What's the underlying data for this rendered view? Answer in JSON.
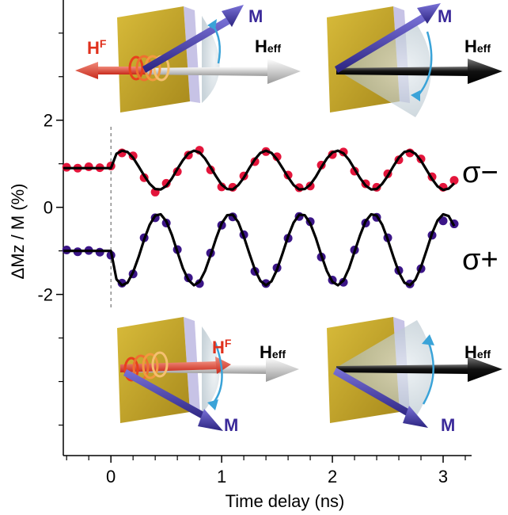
{
  "chart_data": {
    "type": "scatter",
    "xlabel": "Time delay (ns)",
    "ylabel": "ΔMz / M (%)",
    "xlim": [
      -0.43,
      3.25
    ],
    "ylim": [
      -5.7,
      4.76
    ],
    "xticks": [
      0,
      1,
      2,
      3
    ],
    "yticks": [
      -2,
      0,
      2
    ],
    "xminorticks": [
      -0.4,
      -0.2,
      0.2,
      0.4,
      0.6,
      0.8,
      1.2,
      1.4,
      1.6,
      1.8,
      2.2,
      2.4,
      2.6,
      2.8,
      3.2
    ],
    "yminorticks": [
      -5,
      -4,
      -3,
      -1,
      1,
      3,
      4
    ],
    "vline": 0,
    "series": [
      {
        "name": "σ−",
        "color": "#e3153b",
        "mode": "points",
        "x": [
          -0.4,
          -0.3,
          -0.2,
          -0.1,
          0,
          0.1,
          0.2,
          0.3,
          0.4,
          0.5,
          0.6,
          0.7,
          0.8,
          0.9,
          1,
          1.1,
          1.2,
          1.3,
          1.4,
          1.5,
          1.6,
          1.7,
          1.8,
          1.9,
          2,
          2.1,
          2.2,
          2.3,
          2.4,
          2.5,
          2.6,
          2.7,
          2.8,
          2.9,
          3,
          3.1
        ],
        "values": [
          0.92,
          0.9,
          0.93,
          0.91,
          0.95,
          1.25,
          1.18,
          0.68,
          0.35,
          0.55,
          0.82,
          1.2,
          1.31,
          0.86,
          0.47,
          0.46,
          0.72,
          1.05,
          1.28,
          1.16,
          0.74,
          0.45,
          0.49,
          0.97,
          1.21,
          1.27,
          0.83,
          0.54,
          0.46,
          0.77,
          1.09,
          1.25,
          1.11,
          0.7,
          0.46,
          0.62
        ]
      },
      {
        "name": "σ+",
        "color": "#3b1587",
        "mode": "points",
        "x": [
          -0.4,
          -0.3,
          -0.2,
          -0.1,
          0,
          0.1,
          0.2,
          0.3,
          0.4,
          0.5,
          0.6,
          0.7,
          0.8,
          0.9,
          1,
          1.1,
          1.2,
          1.3,
          1.4,
          1.5,
          1.6,
          1.7,
          1.8,
          1.9,
          2,
          2.1,
          2.2,
          2.3,
          2.4,
          2.5,
          2.6,
          2.7,
          2.8,
          2.9,
          3,
          3.1
        ],
        "values": [
          -0.98,
          -1.02,
          -0.99,
          -1.03,
          -1.1,
          -1.74,
          -1.53,
          -0.7,
          -0.24,
          -0.36,
          -0.97,
          -1.62,
          -1.75,
          -1.05,
          -0.41,
          -0.22,
          -0.63,
          -1.47,
          -1.75,
          -1.39,
          -0.71,
          -0.21,
          -0.33,
          -1.14,
          -1.67,
          -1.72,
          -0.98,
          -0.36,
          -0.23,
          -0.7,
          -1.45,
          -1.76,
          -1.41,
          -0.64,
          -0.31,
          -0.38
        ]
      },
      {
        "color": "#000000",
        "mode": "line",
        "x": [
          -0.43,
          0,
          0.05,
          0.1,
          0.15,
          0.2,
          0.25,
          0.3,
          0.35,
          0.4,
          0.45,
          0.5,
          0.55,
          0.6,
          0.65,
          0.7,
          0.75,
          0.8,
          0.85,
          0.9,
          0.95,
          1,
          1.05,
          1.1,
          1.15,
          1.2,
          1.25,
          1.3,
          1.35,
          1.4,
          1.45,
          1.5,
          1.55,
          1.6,
          1.65,
          1.7,
          1.75,
          1.8,
          1.85,
          1.9,
          1.95,
          2,
          2.05,
          2.1,
          2.15,
          2.2,
          2.25,
          2.3,
          2.35,
          2.4,
          2.45,
          2.5,
          2.55,
          2.6,
          2.65,
          2.7,
          2.75,
          2.8,
          2.85,
          2.9,
          2.95,
          3,
          3.05,
          3.1
        ],
        "values": [
          0.9,
          0.9,
          1.23,
          1.3,
          1.27,
          1.14,
          0.94,
          0.73,
          0.54,
          0.42,
          0.41,
          0.49,
          0.66,
          0.88,
          1.08,
          1.24,
          1.3,
          1.26,
          1.12,
          0.92,
          0.71,
          0.52,
          0.42,
          0.41,
          0.51,
          0.68,
          0.9,
          1.1,
          1.25,
          1.3,
          1.25,
          1.1,
          0.9,
          0.69,
          0.51,
          0.41,
          0.42,
          0.52,
          0.7,
          0.92,
          1.12,
          1.26,
          1.3,
          1.24,
          1.09,
          0.88,
          0.67,
          0.5,
          0.41,
          0.42,
          0.54,
          0.72,
          0.94,
          1.14,
          1.27,
          1.3,
          1.23,
          1.07,
          0.86,
          0.65,
          0.48,
          0.4,
          0.43,
          0.55
        ]
      },
      {
        "color": "#000000",
        "mode": "line",
        "x": [
          -0.43,
          0,
          0.05,
          0.1,
          0.15,
          0.2,
          0.25,
          0.3,
          0.35,
          0.4,
          0.45,
          0.5,
          0.55,
          0.6,
          0.65,
          0.7,
          0.75,
          0.8,
          0.85,
          0.9,
          0.95,
          1,
          1.05,
          1.1,
          1.15,
          1.2,
          1.25,
          1.3,
          1.35,
          1.4,
          1.45,
          1.5,
          1.55,
          1.6,
          1.65,
          1.7,
          1.75,
          1.8,
          1.85,
          1.9,
          1.95,
          2,
          2.05,
          2.1,
          2.15,
          2.2,
          2.25,
          2.3,
          2.35,
          2.4,
          2.45,
          2.5,
          2.55,
          2.6,
          2.65,
          2.7,
          2.75,
          2.8,
          2.85,
          2.9,
          2.95,
          3,
          3.05,
          3.1
        ],
        "values": [
          -1.0,
          -1.0,
          -1.65,
          -1.79,
          -1.73,
          -1.49,
          -1.14,
          -0.74,
          -0.4,
          -0.19,
          -0.16,
          -0.32,
          -0.63,
          -1.02,
          -1.4,
          -1.67,
          -1.79,
          -1.71,
          -1.46,
          -1.1,
          -0.71,
          -0.37,
          -0.18,
          -0.17,
          -0.34,
          -0.67,
          -1.06,
          -1.43,
          -1.69,
          -1.79,
          -1.7,
          -1.43,
          -1.06,
          -0.67,
          -0.35,
          -0.17,
          -0.18,
          -0.37,
          -0.7,
          -1.1,
          -1.46,
          -1.71,
          -1.79,
          -1.68,
          -1.4,
          -1.02,
          -0.64,
          -0.32,
          -0.16,
          -0.19,
          -0.4,
          -0.74,
          -1.13,
          -1.49,
          -1.73,
          -1.79,
          -1.66,
          -1.37,
          -0.99,
          -0.6,
          -0.3,
          -0.16,
          -0.2,
          -0.43
        ]
      }
    ],
    "panels": [
      {
        "field": {
          "symbol": "H",
          "superscript": "F"
        },
        "magnetization": "M",
        "effective_field": {
          "symbol": "H",
          "subscript": "eff"
        }
      },
      {
        "magnetization": "M",
        "effective_field": {
          "symbol": "H",
          "subscript": "eff"
        }
      },
      {
        "field": {
          "symbol": "H",
          "superscript": "F"
        },
        "magnetization": "M",
        "effective_field": {
          "symbol": "H",
          "subscript": "eff"
        }
      },
      {
        "magnetization": "M",
        "effective_field": {
          "symbol": "H",
          "subscript": "eff"
        }
      }
    ]
  }
}
